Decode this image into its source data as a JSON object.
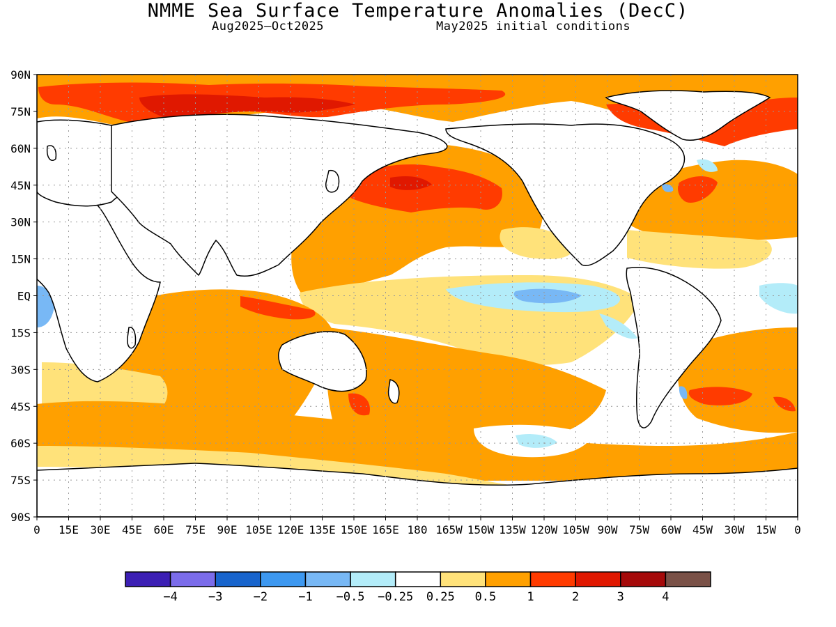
{
  "title": "NMME Sea Surface Temperature Anomalies (DecC)",
  "subtitle_left": "Aug2025–Oct2025",
  "subtitle_right": "May2025 initial conditions",
  "lat_labels": [
    "90N",
    "75N",
    "60N",
    "45N",
    "30N",
    "15N",
    "EQ",
    "15S",
    "30S",
    "45S",
    "60S",
    "75S",
    "90S"
  ],
  "lon_labels": [
    "0",
    "15E",
    "30E",
    "45E",
    "60E",
    "75E",
    "90E",
    "105E",
    "120E",
    "135E",
    "150E",
    "165E",
    "180",
    "165W",
    "150W",
    "135W",
    "120W",
    "105W",
    "90W",
    "75W",
    "60W",
    "45W",
    "30W",
    "15W",
    "0"
  ],
  "colorbar": {
    "colors": [
      "#3c1fb4",
      "#7b6cea",
      "#1864cc",
      "#3d98f0",
      "#78b8f5",
      "#b3ecf9",
      "#ffffff",
      "#ffe27a",
      "#ffa000",
      "#ff3b00",
      "#e01800",
      "#a50a0a",
      "#7a5147"
    ],
    "labels": [
      "−4",
      "−3",
      "−2",
      "−1",
      "−0.5",
      "−0.25",
      "0.25",
      "0.5",
      "1",
      "2",
      "3",
      "4"
    ]
  },
  "colors": {
    "warm_0_25": "#ffe27a",
    "warm_0_5": "#ffa000",
    "warm_1": "#ff3b00",
    "warm_2": "#e01800",
    "warm_3": "#a50a0a",
    "cool_0_25": "#b3ecf9",
    "cool_0_5": "#78b8f5",
    "cool_1": "#3d98f0"
  }
}
